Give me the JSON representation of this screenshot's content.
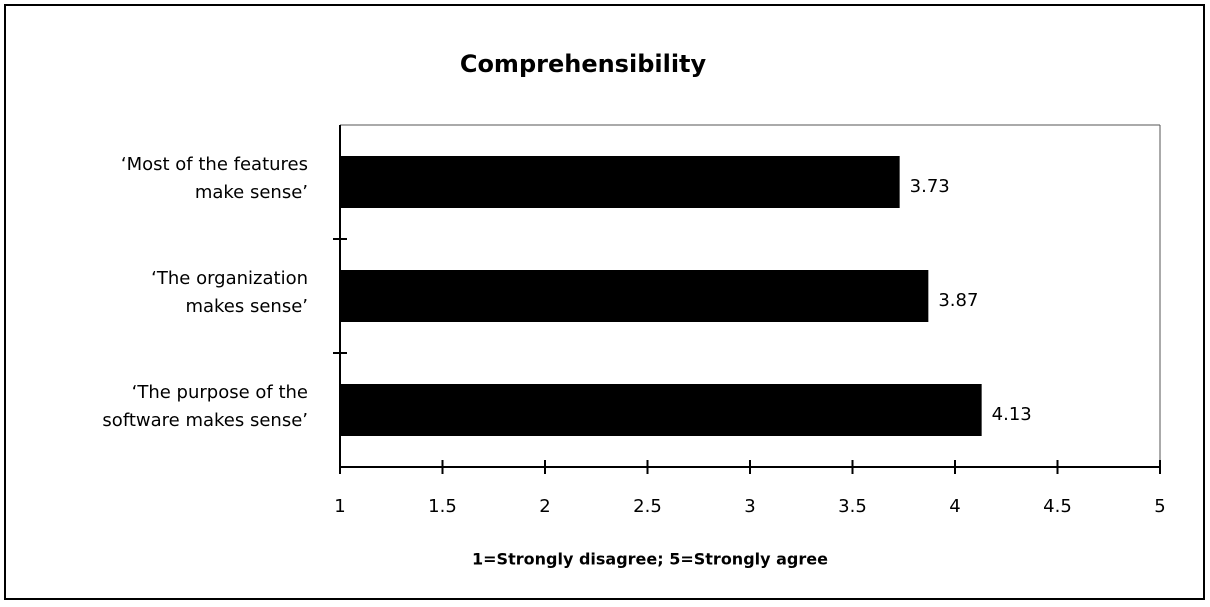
{
  "chart_data": {
    "type": "hbar",
    "title": "Comprehensibility",
    "categories": [
      "‘Most of the features\nmake sense’",
      "‘The organization\nmakes sense’",
      "‘The purpose of the\nsoftware makes sense’"
    ],
    "values": [
      3.73,
      3.87,
      4.13
    ],
    "color": "#000000",
    "xlim": [
      1,
      5
    ],
    "xticks": [
      1,
      1.5,
      2,
      2.5,
      3,
      3.5,
      4,
      4.5,
      5
    ],
    "xlabel": "1=Strongly disagree; 5=Strongly agree"
  }
}
